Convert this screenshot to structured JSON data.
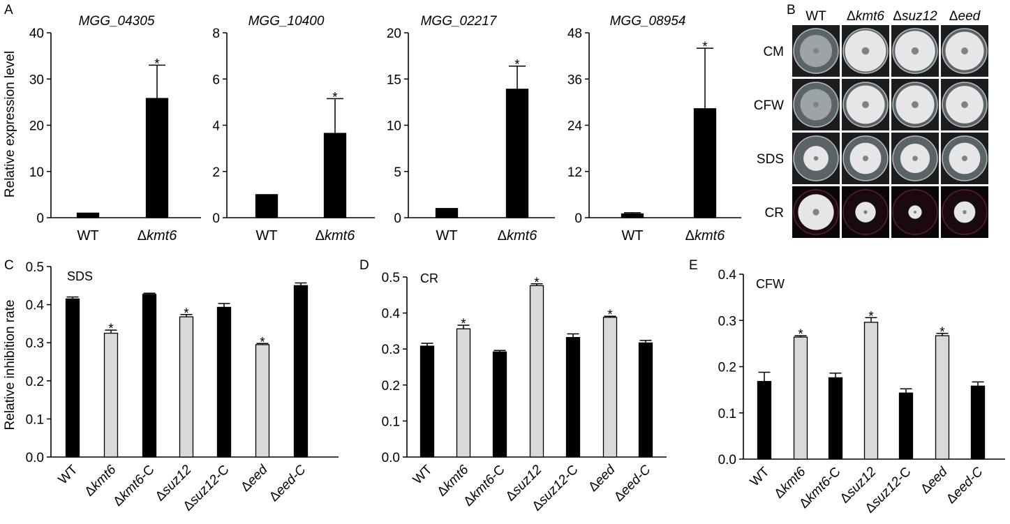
{
  "figure": {
    "panel_letters": [
      "A",
      "B",
      "C",
      "D",
      "E"
    ],
    "palette": {
      "mutant_bar": "#000000",
      "wildtype_bar": "#000000",
      "light_bar": "#d9d9d9",
      "axis": "#000000"
    }
  },
  "chart_data": [
    {
      "panel": "A",
      "type": "bar",
      "title": "MGG_04305",
      "ylabel": "Relative expression level",
      "categories": [
        {
          "prefix": "",
          "name": "WT",
          "suffix": ""
        },
        {
          "prefix": "Δ",
          "name": "kmt6",
          "suffix": ""
        }
      ],
      "values": [
        1.0,
        25.8
      ],
      "errors": [
        0.0,
        7.2
      ],
      "significant": [
        false,
        true
      ],
      "ylim": [
        0,
        40
      ],
      "yticks": [
        "0",
        "10",
        "20",
        "30",
        "40"
      ]
    },
    {
      "panel": "A",
      "type": "bar",
      "title": "MGG_10400",
      "ylabel": "",
      "categories": [
        {
          "prefix": "",
          "name": "WT",
          "suffix": ""
        },
        {
          "prefix": "Δ",
          "name": "kmt6",
          "suffix": ""
        }
      ],
      "values": [
        1.0,
        3.65
      ],
      "errors": [
        0.0,
        1.5
      ],
      "significant": [
        false,
        true
      ],
      "ylim": [
        0,
        8
      ],
      "yticks": [
        "0",
        "2",
        "4",
        "6",
        "8"
      ]
    },
    {
      "panel": "A",
      "type": "bar",
      "title": "MGG_02217",
      "ylabel": "",
      "categories": [
        {
          "prefix": "",
          "name": "WT",
          "suffix": ""
        },
        {
          "prefix": "Δ",
          "name": "kmt6",
          "suffix": ""
        }
      ],
      "values": [
        1.0,
        13.9
      ],
      "errors": [
        0.0,
        2.5
      ],
      "significant": [
        false,
        true
      ],
      "ylim": [
        0,
        20
      ],
      "yticks": [
        "0",
        "5",
        "10",
        "15",
        "20"
      ]
    },
    {
      "panel": "A",
      "type": "bar",
      "title": "MGG_08954",
      "ylabel": "",
      "categories": [
        {
          "prefix": "",
          "name": "WT",
          "suffix": ""
        },
        {
          "prefix": "Δ",
          "name": "kmt6",
          "suffix": ""
        }
      ],
      "values": [
        1.0,
        28.3
      ],
      "errors": [
        0.3,
        15.7
      ],
      "significant": [
        false,
        true
      ],
      "ylim": [
        0,
        48
      ],
      "yticks": [
        "0",
        "12",
        "24",
        "36",
        "48"
      ]
    },
    {
      "panel": "C",
      "type": "bar",
      "title": "SDS",
      "ylabel": "Relative inhibition rate",
      "categories": [
        {
          "prefix": "",
          "name": "WT",
          "suffix": ""
        },
        {
          "prefix": "Δ",
          "name": "kmt6",
          "suffix": ""
        },
        {
          "prefix": "Δ",
          "name": "kmt6",
          "suffix": "-C"
        },
        {
          "prefix": "Δ",
          "name": "suz12",
          "suffix": ""
        },
        {
          "prefix": "Δ",
          "name": "suz12",
          "suffix": "-C"
        },
        {
          "prefix": "Δ",
          "name": "eed",
          "suffix": ""
        },
        {
          "prefix": "Δ",
          "name": "eed-C",
          "suffix": ""
        }
      ],
      "values": [
        0.415,
        0.325,
        0.427,
        0.368,
        0.393,
        0.295,
        0.45
      ],
      "errors": [
        0.005,
        0.008,
        0.003,
        0.006,
        0.01,
        0.003,
        0.007
      ],
      "fills": [
        "dark",
        "light",
        "dark",
        "light",
        "dark",
        "light",
        "dark"
      ],
      "significant": [
        false,
        true,
        false,
        true,
        false,
        true,
        false
      ],
      "ylim": [
        0,
        0.5
      ],
      "yticks": [
        "0.0",
        "0.1",
        "0.2",
        "0.3",
        "0.4",
        "0.5"
      ]
    },
    {
      "panel": "D",
      "type": "bar",
      "title": "CR",
      "ylabel": "",
      "categories": [
        {
          "prefix": "",
          "name": "WT",
          "suffix": ""
        },
        {
          "prefix": "Δ",
          "name": "kmt6",
          "suffix": ""
        },
        {
          "prefix": "Δ",
          "name": "kmt6",
          "suffix": "-C"
        },
        {
          "prefix": "Δ",
          "name": "suz12",
          "suffix": ""
        },
        {
          "prefix": "Δ",
          "name": "suz12",
          "suffix": "-C"
        },
        {
          "prefix": "Δ",
          "name": "eed",
          "suffix": ""
        },
        {
          "prefix": "Δ",
          "name": "eed-C",
          "suffix": ""
        }
      ],
      "values": [
        0.308,
        0.356,
        0.292,
        0.476,
        0.332,
        0.388,
        0.317
      ],
      "errors": [
        0.008,
        0.01,
        0.004,
        0.005,
        0.01,
        0.003,
        0.007
      ],
      "fills": [
        "dark",
        "light",
        "dark",
        "light",
        "dark",
        "light",
        "dark"
      ],
      "significant": [
        false,
        true,
        false,
        true,
        false,
        true,
        false
      ],
      "ylim": [
        0,
        0.5
      ],
      "yticks": [
        "0.0",
        "0.1",
        "0.2",
        "0.3",
        "0.4",
        "0.5"
      ]
    },
    {
      "panel": "E",
      "type": "bar",
      "title": "CFW",
      "ylabel": "",
      "categories": [
        {
          "prefix": "",
          "name": "WT",
          "suffix": ""
        },
        {
          "prefix": "Δ",
          "name": "kmt6",
          "suffix": ""
        },
        {
          "prefix": "Δ",
          "name": "kmt6",
          "suffix": "-C"
        },
        {
          "prefix": "Δ",
          "name": "suz12",
          "suffix": ""
        },
        {
          "prefix": "Δ",
          "name": "suz12",
          "suffix": "-C"
        },
        {
          "prefix": "Δ",
          "name": "eed",
          "suffix": ""
        },
        {
          "prefix": "Δ",
          "name": "eed-C",
          "suffix": ""
        }
      ],
      "values": [
        0.168,
        0.264,
        0.176,
        0.296,
        0.143,
        0.267,
        0.158
      ],
      "errors": [
        0.02,
        0.003,
        0.01,
        0.01,
        0.009,
        0.005,
        0.009
      ],
      "fills": [
        "dark",
        "light",
        "dark",
        "light",
        "dark",
        "light",
        "dark"
      ],
      "significant": [
        false,
        true,
        false,
        true,
        false,
        true,
        false
      ],
      "ylim": [
        0,
        0.4
      ],
      "yticks": [
        "0.0",
        "0.1",
        "0.2",
        "0.3",
        "0.4"
      ]
    }
  ],
  "plates": {
    "panel": "B",
    "columns": [
      {
        "prefix": "",
        "name": "WT"
      },
      {
        "prefix": "Δ",
        "name": "kmt6"
      },
      {
        "prefix": "Δ",
        "name": "suz12"
      },
      {
        "prefix": "Δ",
        "name": "eed"
      }
    ],
    "rows": [
      "CM",
      "CFW",
      "SDS",
      "CR"
    ],
    "colony_color": "#e6e6e6",
    "plate_background": "#1c1c1c",
    "cr_background": "#0c0507",
    "colony_diameter": [
      [
        0.72,
        0.92,
        0.9,
        0.86
      ],
      [
        0.7,
        0.86,
        0.86,
        0.84
      ],
      [
        0.56,
        0.7,
        0.66,
        0.7
      ],
      [
        0.8,
        0.46,
        0.3,
        0.48
      ]
    ]
  }
}
